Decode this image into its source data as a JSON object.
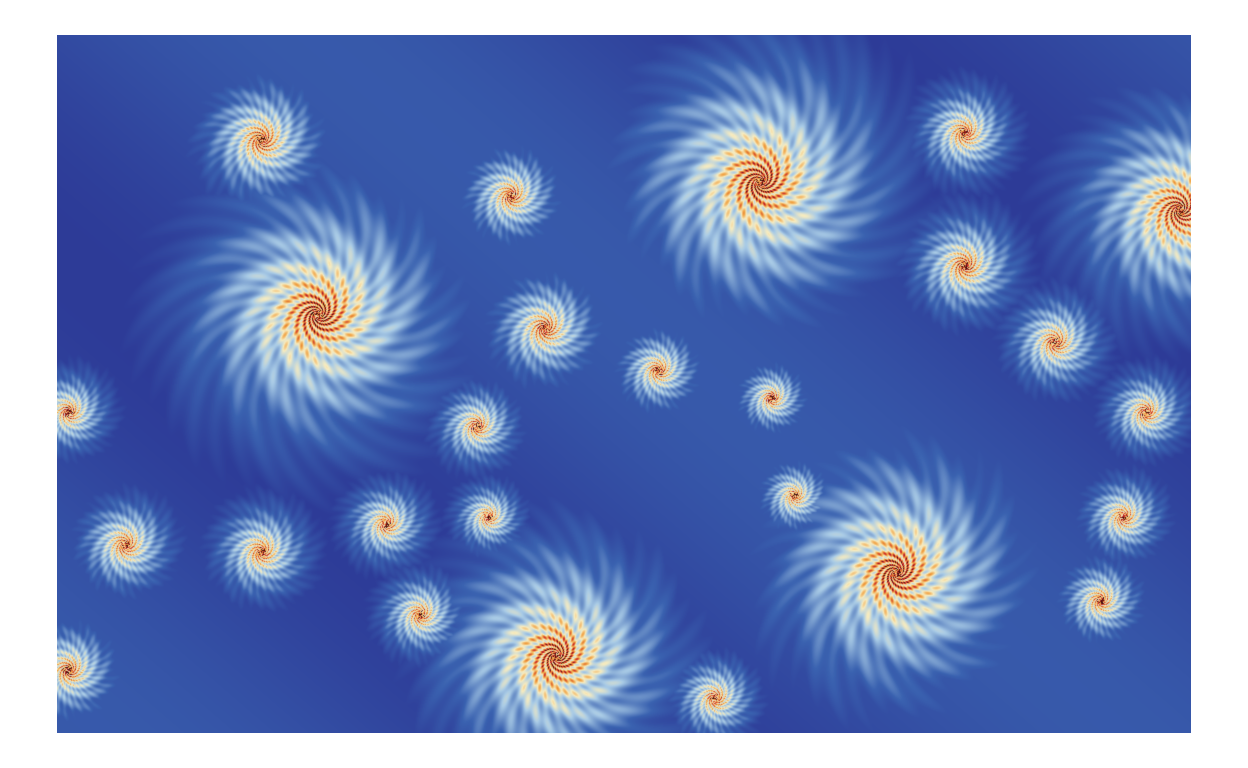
{
  "image": {
    "subject": "fractal-spirals",
    "palette": {
      "deep_blue": "#26268a",
      "mid_blue": "#3a62b0",
      "light_blue": "#a9cbe6",
      "cream": "#f7ecc0",
      "orange": "#f0a040",
      "red": "#c8202a",
      "core": "#3a0a0a"
    }
  }
}
